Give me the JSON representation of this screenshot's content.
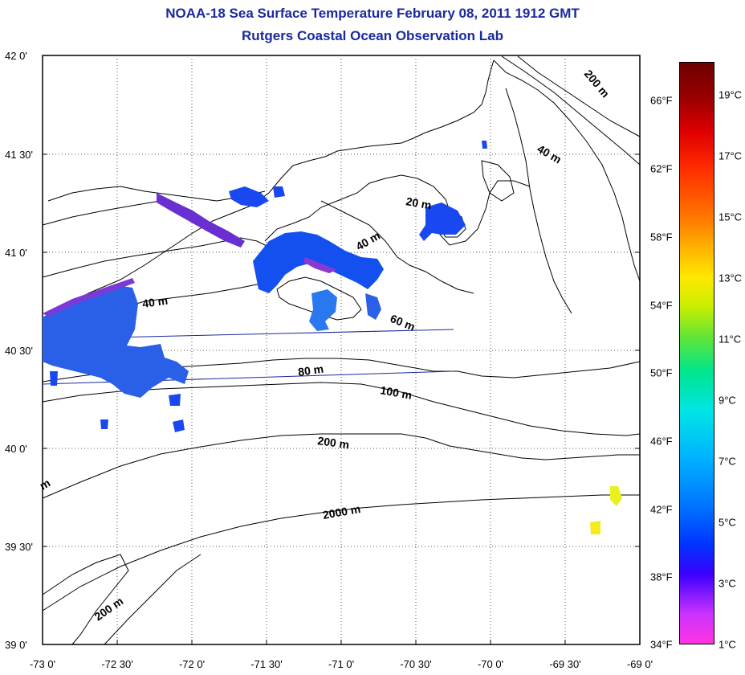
{
  "title": {
    "line1": "NOAA-18 Sea Surface Temperature February 08, 2011 1912 GMT",
    "line2": "Rutgers Coastal Ocean Observation Lab"
  },
  "map": {
    "lat_range": [
      39.0,
      42.0
    ],
    "lon_range": [
      -73.0,
      -69.0
    ],
    "grid": "dotted",
    "lat_labels": [
      "42 0'",
      "41 30'",
      "41 0'",
      "40 30'",
      "40 0'",
      "39 30'",
      "39 0'"
    ],
    "lon_labels": [
      "-73 0'",
      "-72 30'",
      "-72 0'",
      "-71 30'",
      "-71 0'",
      "-70 30'",
      "-70 0'",
      "-69 30'",
      "-69 0'"
    ],
    "depth_labels": [
      "200 m",
      "40 m",
      "20 m",
      "40 m",
      "40 m",
      "60 m",
      "80 m",
      "100 m",
      "200 m",
      "2000 m",
      "200 m",
      "m"
    ],
    "land_color": "#ffffff",
    "contour_color": "#000000"
  },
  "colorbar": {
    "fahrenheit": [
      "66°F",
      "62°F",
      "58°F",
      "54°F",
      "50°F",
      "46°F",
      "42°F",
      "38°F",
      "34°F"
    ],
    "celsius": [
      "19°C",
      "17°C",
      "15°C",
      "13°C",
      "11°C",
      "9°C",
      "7°C",
      "5°C",
      "3°C",
      "1°C"
    ],
    "range_c": [
      1,
      20
    ]
  }
}
